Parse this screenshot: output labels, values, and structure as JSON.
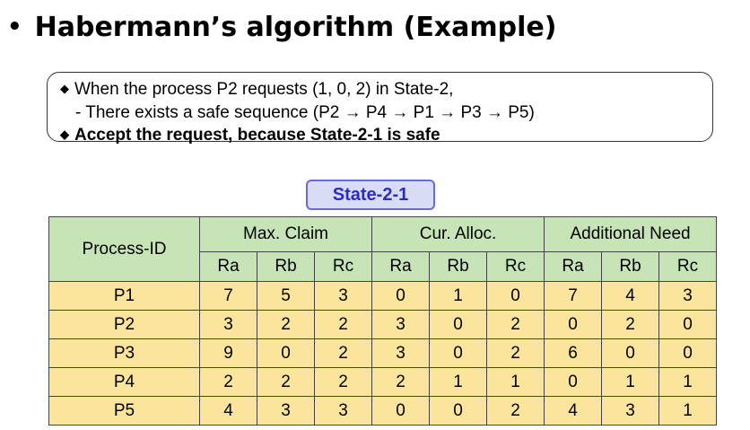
{
  "title": {
    "bullet": "•",
    "text": "Habermann’s algorithm (Example)"
  },
  "note": {
    "line1": "When the process P2 requests (1, 0, 2) in State-2,",
    "line2": "- There exists a safe sequence (P2 → P4 → P1  → P3 → P5)",
    "line3": "Accept the request, because State-2-1 is safe",
    "bullet": "◆"
  },
  "state_label": "State-2-1",
  "table": {
    "process_header": "Process-ID",
    "groups": [
      "Max. Claim",
      "Cur. Alloc.",
      "Additional Need"
    ],
    "subheaders": [
      "Ra",
      "Rb",
      "Rc"
    ],
    "rows": [
      {
        "pid": "P1",
        "values": [
          "7",
          "5",
          "3",
          "0",
          "1",
          "0",
          "7",
          "4",
          "3"
        ]
      },
      {
        "pid": "P2",
        "values": [
          "3",
          "2",
          "2",
          "3",
          "0",
          "2",
          "0",
          "2",
          "0"
        ]
      },
      {
        "pid": "P3",
        "values": [
          "9",
          "0",
          "2",
          "3",
          "0",
          "2",
          "6",
          "0",
          "0"
        ]
      },
      {
        "pid": "P4",
        "values": [
          "2",
          "2",
          "2",
          "2",
          "1",
          "1",
          "0",
          "1",
          "1"
        ]
      },
      {
        "pid": "P5",
        "values": [
          "4",
          "3",
          "3",
          "0",
          "0",
          "2",
          "4",
          "3",
          "1"
        ]
      }
    ]
  }
}
